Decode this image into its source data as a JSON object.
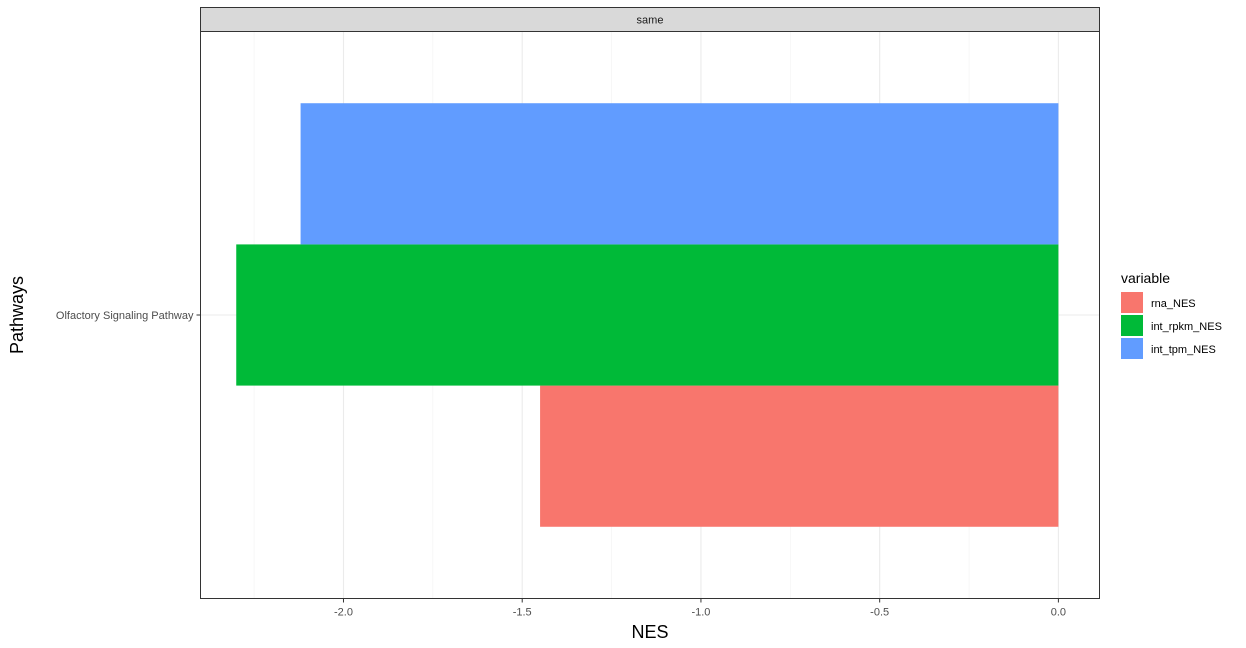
{
  "chart_data": {
    "type": "bar",
    "orientation": "horizontal",
    "facet": "same",
    "categories": [
      "Olfactory Signaling Pathway"
    ],
    "series": [
      {
        "name": "rna_NES",
        "values": [
          -1.45
        ],
        "color": "#F8766D"
      },
      {
        "name": "int_rpkm_NES",
        "values": [
          -2.3
        ],
        "color": "#00BA38"
      },
      {
        "name": "int_tpm_NES",
        "values": [
          -2.12
        ],
        "color": "#619CFF"
      }
    ],
    "xlabel": "NES",
    "ylabel": "Pathways",
    "xlim": [
      -2.4,
      0.115
    ],
    "xticks": [
      -2.0,
      -1.5,
      -1.0,
      -0.5,
      0.0
    ],
    "xtick_labels": [
      "-2.0",
      "-1.5",
      "-1.0",
      "-0.5",
      "0.0"
    ],
    "grid": true,
    "legend": {
      "title": "variable",
      "position": "right"
    }
  }
}
